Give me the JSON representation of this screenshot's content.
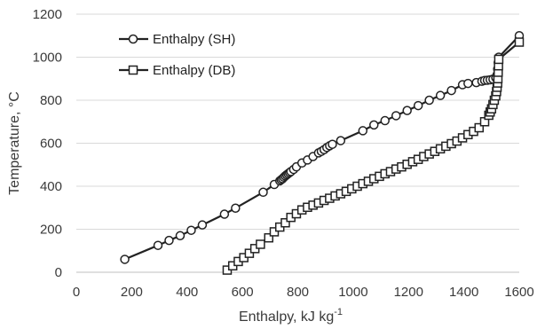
{
  "chart_data": {
    "type": "line",
    "xlabel": "Enthalpy, kJ kg",
    "xlabel_sup": "-1",
    "ylabel": "Temperature, °C",
    "xlim": [
      0,
      1600
    ],
    "ylim": [
      0,
      1200
    ],
    "x_ticks": [
      0,
      200,
      400,
      600,
      800,
      1000,
      1200,
      1400,
      1600
    ],
    "y_ticks": [
      0,
      200,
      400,
      600,
      800,
      1000,
      1200
    ],
    "grid": "horizontal",
    "legend_position": "top-left",
    "colors": {
      "series": "#222222",
      "grid": "#d9d9d9",
      "text": "#3a3a3a"
    },
    "series": [
      {
        "name": "Enthalpy (SH)",
        "marker": "circle",
        "points": [
          [
            175,
            60
          ],
          [
            295,
            125
          ],
          [
            335,
            148
          ],
          [
            375,
            170
          ],
          [
            415,
            195
          ],
          [
            455,
            220
          ],
          [
            535,
            270
          ],
          [
            575,
            298
          ],
          [
            675,
            372
          ],
          [
            715,
            408
          ],
          [
            735,
            425
          ],
          [
            740,
            430
          ],
          [
            745,
            435
          ],
          [
            750,
            442
          ],
          [
            755,
            448
          ],
          [
            760,
            453
          ],
          [
            765,
            458
          ],
          [
            770,
            463
          ],
          [
            775,
            468
          ],
          [
            785,
            478
          ],
          [
            795,
            490
          ],
          [
            815,
            508
          ],
          [
            835,
            522
          ],
          [
            855,
            538
          ],
          [
            875,
            555
          ],
          [
            885,
            562
          ],
          [
            895,
            570
          ],
          [
            905,
            580
          ],
          [
            915,
            588
          ],
          [
            925,
            595
          ],
          [
            955,
            612
          ],
          [
            1035,
            658
          ],
          [
            1075,
            685
          ],
          [
            1115,
            705
          ],
          [
            1155,
            728
          ],
          [
            1195,
            752
          ],
          [
            1235,
            775
          ],
          [
            1275,
            800
          ],
          [
            1315,
            822
          ],
          [
            1355,
            845
          ],
          [
            1395,
            872
          ],
          [
            1415,
            878
          ],
          [
            1445,
            882
          ],
          [
            1465,
            888
          ],
          [
            1475,
            892
          ],
          [
            1485,
            893
          ],
          [
            1495,
            895
          ],
          [
            1505,
            898
          ],
          [
            1515,
            905
          ],
          [
            1520,
            918
          ],
          [
            1522,
            945
          ],
          [
            1524,
            975
          ],
          [
            1526,
            1000
          ],
          [
            1600,
            1100
          ]
        ]
      },
      {
        "name": "Enthalpy (DB)",
        "marker": "square",
        "points": [
          [
            545,
            10
          ],
          [
            565,
            30
          ],
          [
            585,
            50
          ],
          [
            605,
            68
          ],
          [
            625,
            88
          ],
          [
            645,
            110
          ],
          [
            665,
            130
          ],
          [
            695,
            160
          ],
          [
            715,
            188
          ],
          [
            735,
            210
          ],
          [
            755,
            230
          ],
          [
            775,
            255
          ],
          [
            795,
            272
          ],
          [
            815,
            290
          ],
          [
            835,
            302
          ],
          [
            855,
            312
          ],
          [
            875,
            322
          ],
          [
            895,
            334
          ],
          [
            915,
            344
          ],
          [
            935,
            355
          ],
          [
            955,
            365
          ],
          [
            975,
            376
          ],
          [
            995,
            388
          ],
          [
            1015,
            400
          ],
          [
            1035,
            412
          ],
          [
            1055,
            423
          ],
          [
            1075,
            435
          ],
          [
            1095,
            446
          ],
          [
            1115,
            458
          ],
          [
            1135,
            468
          ],
          [
            1155,
            480
          ],
          [
            1175,
            490
          ],
          [
            1195,
            502
          ],
          [
            1215,
            514
          ],
          [
            1235,
            525
          ],
          [
            1255,
            538
          ],
          [
            1275,
            550
          ],
          [
            1295,
            562
          ],
          [
            1315,
            574
          ],
          [
            1335,
            586
          ],
          [
            1355,
            598
          ],
          [
            1375,
            610
          ],
          [
            1395,
            625
          ],
          [
            1415,
            640
          ],
          [
            1435,
            655
          ],
          [
            1455,
            672
          ],
          [
            1475,
            700
          ],
          [
            1490,
            730
          ],
          [
            1495,
            745
          ],
          [
            1500,
            760
          ],
          [
            1505,
            780
          ],
          [
            1510,
            800
          ],
          [
            1515,
            820
          ],
          [
            1518,
            840
          ],
          [
            1520,
            860
          ],
          [
            1522,
            880
          ],
          [
            1523,
            900
          ],
          [
            1524,
            930
          ],
          [
            1525,
            960
          ],
          [
            1526,
            990
          ],
          [
            1600,
            1070
          ]
        ]
      }
    ]
  }
}
